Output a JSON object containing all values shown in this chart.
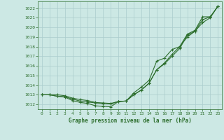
{
  "bg_color": "#cce8e4",
  "grid_color": "#aacccc",
  "line_color": "#2d6e2d",
  "title": "Graphe pression niveau de la mer (hPa)",
  "xlim": [
    -0.5,
    23.5
  ],
  "ylim": [
    1011.5,
    1022.7
  ],
  "yticks": [
    1012,
    1013,
    1014,
    1015,
    1016,
    1017,
    1018,
    1019,
    1020,
    1021,
    1022
  ],
  "xticks": [
    0,
    1,
    2,
    3,
    4,
    5,
    6,
    7,
    8,
    9,
    10,
    11,
    12,
    13,
    14,
    15,
    16,
    17,
    18,
    19,
    20,
    21,
    22,
    23
  ],
  "series1_x": [
    0,
    1,
    2,
    3,
    4,
    5,
    6,
    7,
    8,
    9,
    10,
    11,
    12,
    13,
    14,
    15,
    16,
    17,
    18,
    19,
    20,
    21,
    22,
    23
  ],
  "series1_y": [
    1013.0,
    1013.0,
    1013.0,
    1012.9,
    1012.65,
    1012.5,
    1012.4,
    1012.2,
    1012.15,
    1012.1,
    1012.3,
    1012.35,
    1013.0,
    1013.5,
    1014.2,
    1015.6,
    1016.3,
    1017.2,
    1018.0,
    1019.0,
    1019.6,
    1020.5,
    1021.0,
    1022.2
  ],
  "series2_x": [
    0,
    1,
    2,
    3,
    4,
    5,
    6,
    7,
    8,
    9,
    10,
    11,
    12,
    13,
    14,
    15,
    16,
    17,
    18,
    19,
    20,
    21,
    22,
    23
  ],
  "series2_y": [
    1013.0,
    1013.0,
    1012.85,
    1012.8,
    1012.55,
    1012.35,
    1012.25,
    1012.15,
    1012.1,
    1012.05,
    1012.3,
    1012.35,
    1013.0,
    1013.5,
    1014.2,
    1015.6,
    1016.2,
    1017.0,
    1017.8,
    1019.2,
    1019.6,
    1020.8,
    1021.1,
    1022.2
  ],
  "series3_x": [
    0,
    1,
    2,
    3,
    4,
    5,
    6,
    7,
    8,
    9,
    10,
    11,
    12,
    13,
    14,
    15,
    16,
    17,
    18,
    19,
    20,
    21,
    22,
    23
  ],
  "series3_y": [
    1013.0,
    1013.0,
    1012.85,
    1012.75,
    1012.4,
    1012.2,
    1012.1,
    1011.85,
    1011.8,
    1011.75,
    1012.3,
    1012.35,
    1013.2,
    1013.8,
    1014.5,
    1016.5,
    1016.8,
    1017.7,
    1018.0,
    1019.3,
    1019.7,
    1021.1,
    1021.1,
    1022.2
  ]
}
